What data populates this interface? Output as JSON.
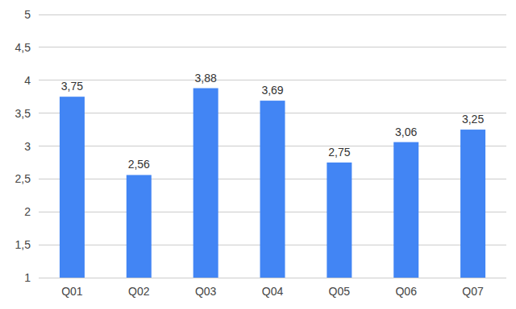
{
  "chart_data": {
    "type": "bar",
    "categories": [
      "Q01",
      "Q02",
      "Q03",
      "Q04",
      "Q05",
      "Q06",
      "Q07"
    ],
    "values": [
      3.75,
      2.56,
      3.88,
      3.69,
      2.75,
      3.06,
      3.25
    ],
    "value_labels": [
      "3,75",
      "2,56",
      "3,88",
      "3,69",
      "2,75",
      "3,06",
      "3,25"
    ],
    "color": "#4285f4",
    "ylim": [
      1,
      5
    ],
    "yticks": [
      1,
      {
        "value": 1.5,
        "label": "1,5"
      },
      2,
      {
        "value": 2.5,
        "label": "2,5"
      },
      3,
      {
        "value": 3.5,
        "label": "3,5"
      },
      4,
      {
        "value": 4.5,
        "label": "4,5"
      },
      5
    ],
    "grid": true,
    "data_labels": true
  }
}
